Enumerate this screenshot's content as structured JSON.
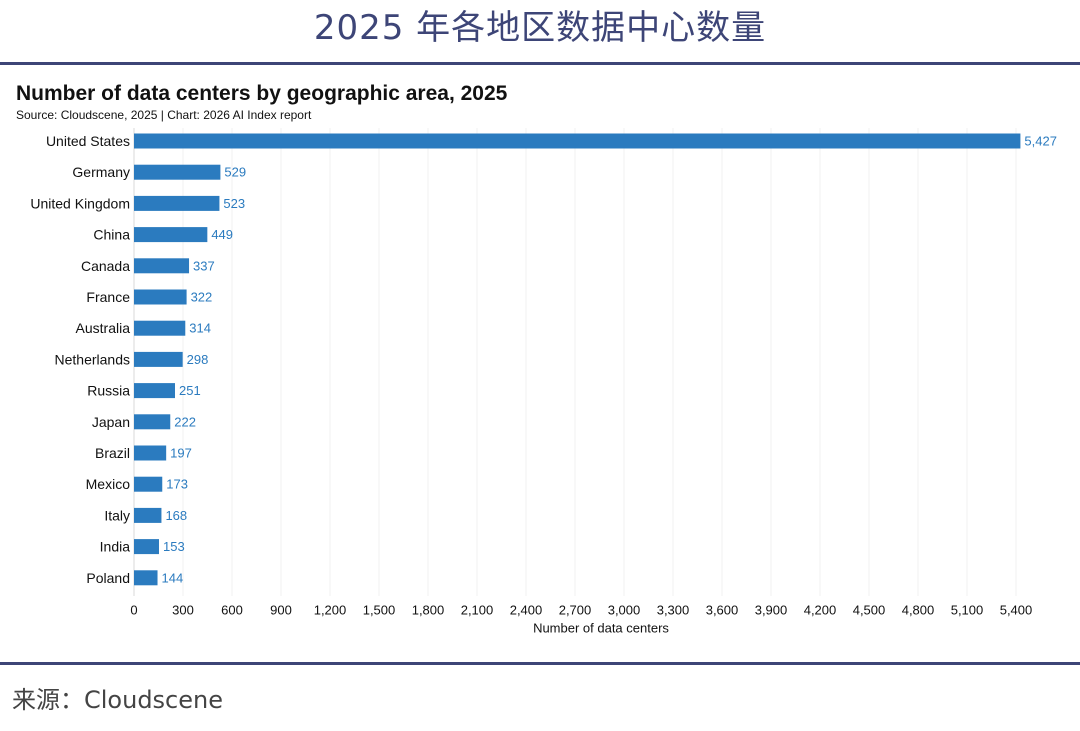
{
  "page": {
    "title": "2025 年各地区数据中心数量",
    "footer": "来源：Cloudscene"
  },
  "colors": {
    "bar": "#2b7bbf",
    "value_label": "#2b7bbf",
    "rule": "#3d4577"
  },
  "chart_data": {
    "type": "bar",
    "orientation": "horizontal",
    "title": "Number of data centers by geographic area, 2025",
    "subtitle": "Source: Cloudscene, 2025 | Chart: 2026 AI Index report",
    "xlabel": "Number of data centers",
    "ylabel": "",
    "xlim": [
      0,
      5700
    ],
    "xticks": [
      0,
      300,
      600,
      900,
      1200,
      1500,
      1800,
      2100,
      2400,
      2700,
      3000,
      3300,
      3600,
      3900,
      4200,
      4500,
      4800,
      5100,
      5400
    ],
    "xtick_labels": [
      "0",
      "300",
      "600",
      "900",
      "1,200",
      "1,500",
      "1,800",
      "2,100",
      "2,400",
      "2,700",
      "3,000",
      "3,300",
      "3,600",
      "3,900",
      "4,200",
      "4,500",
      "4,800",
      "5,100",
      "5,400"
    ],
    "grid": true,
    "categories": [
      "United States",
      "Germany",
      "United Kingdom",
      "China",
      "Canada",
      "France",
      "Australia",
      "Netherlands",
      "Russia",
      "Japan",
      "Brazil",
      "Mexico",
      "Italy",
      "India",
      "Poland"
    ],
    "values": [
      5427,
      529,
      523,
      449,
      337,
      322,
      314,
      298,
      251,
      222,
      197,
      173,
      168,
      153,
      144
    ],
    "value_labels": [
      "5,427",
      "529",
      "523",
      "449",
      "337",
      "322",
      "314",
      "298",
      "251",
      "222",
      "197",
      "173",
      "168",
      "153",
      "144"
    ]
  }
}
